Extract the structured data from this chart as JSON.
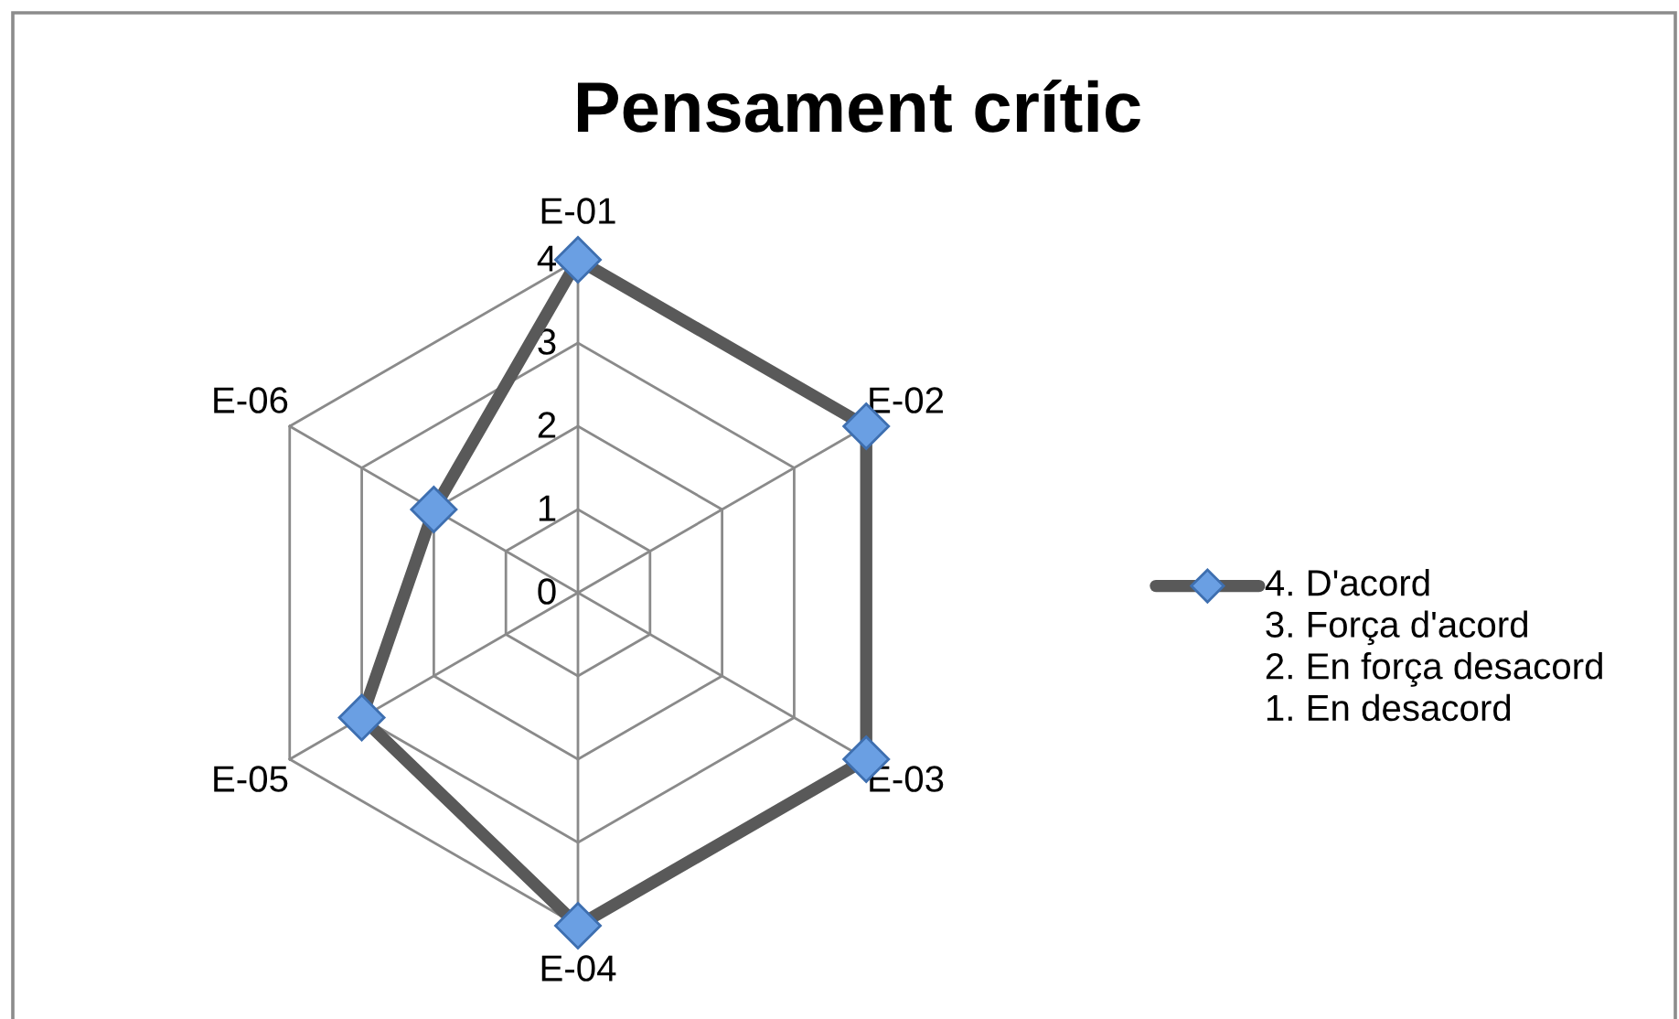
{
  "chart_data": {
    "type": "radar",
    "title": "Pensament crític",
    "categories": [
      "E-01",
      "E-02",
      "E-03",
      "E-04",
      "E-05",
      "E-06"
    ],
    "series": [
      {
        "name": "4. D'acord\n3. Força d'acord\n2. En força desacord\n1. En desacord",
        "color": "#595959",
        "colors": [
          "#6a9fe3",
          "#6a9fe3",
          "#6a9fe3",
          "#6a9fe3",
          "#6a9fe3",
          "#6a9fe3"
        ],
        "values": [
          4,
          4,
          4,
          4,
          3,
          2
        ]
      }
    ],
    "ylim": [
      0,
      4
    ],
    "yticks": [
      0,
      1,
      2,
      3,
      4
    ],
    "grid": true,
    "legend": "right",
    "marker": "diamond",
    "line_style": "solid"
  }
}
